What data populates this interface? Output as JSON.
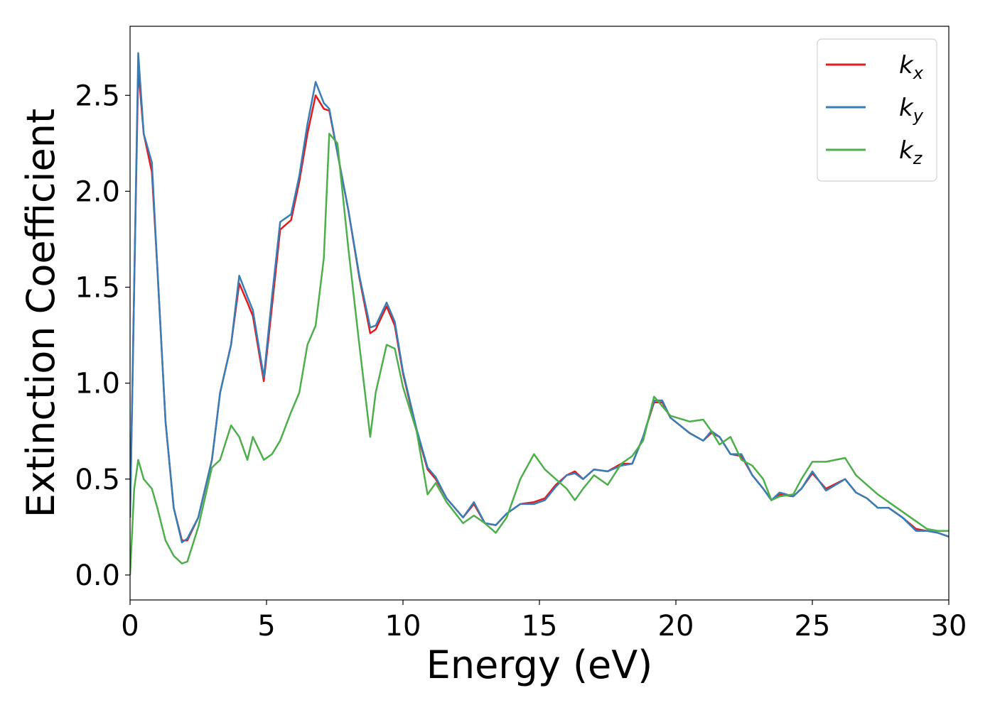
{
  "chart_data": {
    "type": "line",
    "xlabel": "Energy (eV)",
    "ylabel": "Extinction Coefficient",
    "x": [
      0,
      0.15,
      0.3,
      0.5,
      0.8,
      1.0,
      1.3,
      1.6,
      1.9,
      2.1,
      2.5,
      3.0,
      3.3,
      3.7,
      4.0,
      4.3,
      4.5,
      4.9,
      5.2,
      5.5,
      5.9,
      6.2,
      6.5,
      6.8,
      7.1,
      7.3,
      7.6,
      8.0,
      8.4,
      8.8,
      9.0,
      9.4,
      9.7,
      10.0,
      10.5,
      10.9,
      11.2,
      11.6,
      12.2,
      12.6,
      13.0,
      13.4,
      13.8,
      14.3,
      14.8,
      15.2,
      15.6,
      16.0,
      16.3,
      16.6,
      17.0,
      17.5,
      18.0,
      18.4,
      18.8,
      19.2,
      19.5,
      19.8,
      20.5,
      21.0,
      21.3,
      21.6,
      22.0,
      22.4,
      22.8,
      23.2,
      23.5,
      23.8,
      24.3,
      24.6,
      25.0,
      25.5,
      26.2,
      26.6,
      27.0,
      27.4,
      27.8,
      28.3,
      28.8,
      29.2,
      29.6,
      30
    ],
    "series": [
      {
        "name": "kx",
        "color": "#e41a1c",
        "values": [
          0.3,
          1.5,
          2.64,
          2.3,
          2.1,
          1.6,
          0.8,
          0.35,
          0.18,
          0.18,
          0.3,
          0.6,
          0.95,
          1.2,
          1.52,
          1.42,
          1.35,
          1.01,
          1.4,
          1.8,
          1.85,
          2.05,
          2.3,
          2.5,
          2.43,
          2.42,
          2.2,
          1.9,
          1.55,
          1.26,
          1.28,
          1.4,
          1.3,
          1.05,
          0.75,
          0.55,
          0.5,
          0.4,
          0.3,
          0.37,
          0.27,
          0.26,
          0.32,
          0.37,
          0.38,
          0.4,
          0.47,
          0.52,
          0.54,
          0.5,
          0.55,
          0.54,
          0.58,
          0.58,
          0.72,
          0.9,
          0.9,
          0.82,
          0.74,
          0.7,
          0.74,
          0.72,
          0.63,
          0.62,
          0.52,
          0.45,
          0.39,
          0.42,
          0.41,
          0.45,
          0.53,
          0.45,
          0.5,
          0.43,
          0.4,
          0.35,
          0.35,
          0.3,
          0.24,
          0.23,
          0.22,
          0.2
        ]
      },
      {
        "name": "ky",
        "color": "#377eb8",
        "values": [
          0.3,
          1.5,
          2.72,
          2.3,
          2.15,
          1.6,
          0.8,
          0.35,
          0.17,
          0.19,
          0.3,
          0.6,
          0.95,
          1.2,
          1.56,
          1.45,
          1.38,
          1.03,
          1.45,
          1.84,
          1.88,
          2.08,
          2.35,
          2.57,
          2.46,
          2.43,
          2.2,
          1.9,
          1.56,
          1.29,
          1.3,
          1.42,
          1.32,
          1.06,
          0.76,
          0.56,
          0.51,
          0.4,
          0.3,
          0.38,
          0.27,
          0.26,
          0.32,
          0.37,
          0.37,
          0.39,
          0.46,
          0.52,
          0.53,
          0.5,
          0.55,
          0.54,
          0.57,
          0.58,
          0.72,
          0.91,
          0.91,
          0.82,
          0.74,
          0.7,
          0.75,
          0.72,
          0.63,
          0.63,
          0.52,
          0.45,
          0.39,
          0.43,
          0.41,
          0.45,
          0.54,
          0.44,
          0.5,
          0.43,
          0.4,
          0.35,
          0.35,
          0.3,
          0.23,
          0.23,
          0.22,
          0.2
        ]
      },
      {
        "name": "kz",
        "color": "#4daf4a",
        "values": [
          0,
          0.45,
          0.6,
          0.5,
          0.45,
          0.35,
          0.18,
          0.1,
          0.06,
          0.07,
          0.25,
          0.56,
          0.6,
          0.78,
          0.72,
          0.6,
          0.72,
          0.6,
          0.63,
          0.7,
          0.85,
          0.95,
          1.2,
          1.3,
          1.65,
          2.3,
          2.25,
          1.7,
          1.2,
          0.72,
          0.95,
          1.2,
          1.18,
          0.98,
          0.75,
          0.42,
          0.48,
          0.38,
          0.27,
          0.31,
          0.27,
          0.22,
          0.3,
          0.5,
          0.63,
          0.55,
          0.5,
          0.45,
          0.39,
          0.45,
          0.52,
          0.47,
          0.58,
          0.62,
          0.7,
          0.93,
          0.88,
          0.83,
          0.8,
          0.81,
          0.75,
          0.68,
          0.72,
          0.6,
          0.57,
          0.5,
          0.39,
          0.41,
          0.42,
          0.5,
          0.59,
          0.59,
          0.61,
          0.52,
          0.47,
          0.42,
          0.38,
          0.33,
          0.28,
          0.24,
          0.23,
          0.23
        ]
      }
    ],
    "xlim": [
      0,
      30
    ],
    "xticks": [
      0,
      5,
      10,
      15,
      20,
      25,
      30
    ],
    "ylim": [
      -0.13,
      2.86
    ],
    "yticks": [
      {
        "value": 0,
        "label": "0.0"
      },
      0.5,
      {
        "value": 1,
        "label": "1.0"
      },
      1.5,
      {
        "value": 2,
        "label": "2.0"
      },
      2.5
    ],
    "legend": "upper right"
  }
}
